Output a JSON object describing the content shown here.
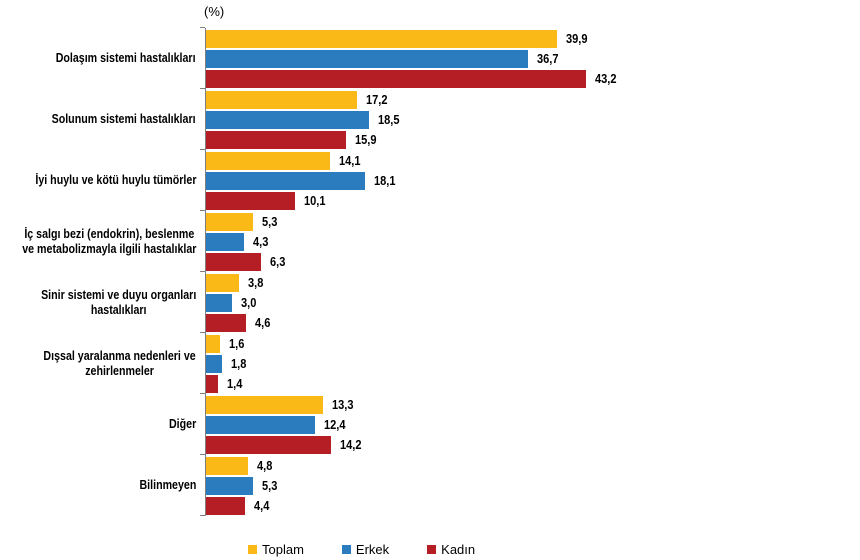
{
  "unit_label": "(%)",
  "colors": {
    "axis": "#7F7F7F",
    "text": "#000000",
    "toplam": "#FBB917",
    "erkek": "#2B7CBE",
    "kadin": "#B41E24"
  },
  "legend": {
    "position": "bottom",
    "items": [
      {
        "label": "Toplam",
        "color": "#FBB917"
      },
      {
        "label": "Erkek",
        "color": "#2B7CBE"
      },
      {
        "label": "Kadın",
        "color": "#B41E24"
      }
    ]
  },
  "chart_data": {
    "type": "bar",
    "orientation": "horizontal",
    "title": "",
    "xlabel": "(%)",
    "ylabel": "",
    "xlim": [
      0,
      70
    ],
    "grid": false,
    "legend_position": "bottom",
    "decimal_separator": ",",
    "categories": [
      "Dolaşım sistemi hastalıkları",
      "Solunum sistemi hastalıkları",
      "İyi huylu ve kötü huylu tümörler",
      "İç salgı bezi (endokrin), beslenme\nve metabolizmayla ilgili hastalıklar",
      "Sinir sistemi ve duyu organları\nhastalıkları",
      "Dışsal yaralanma nedenleri ve\nzehirlenmeler",
      "Diğer",
      "Bilinmeyen"
    ],
    "series": [
      {
        "name": "Toplam",
        "color": "#FBB917",
        "values": [
          39.9,
          17.2,
          14.1,
          5.3,
          3.8,
          1.6,
          13.3,
          4.8
        ],
        "labels": [
          "39,9",
          "17,2",
          "14,1",
          "5,3",
          "3,8",
          "1,6",
          "13,3",
          "4,8"
        ]
      },
      {
        "name": "Erkek",
        "color": "#2B7CBE",
        "values": [
          36.7,
          18.5,
          18.1,
          4.3,
          3.0,
          1.8,
          12.4,
          5.3
        ],
        "labels": [
          "36,7",
          "18,5",
          "18,1",
          "4,3",
          "3,0",
          "1,8",
          "12,4",
          "5,3"
        ]
      },
      {
        "name": "Kadın",
        "color": "#B41E24",
        "values": [
          43.2,
          15.9,
          10.1,
          6.3,
          4.6,
          1.4,
          14.2,
          4.4
        ],
        "labels": [
          "43,2",
          "15,9",
          "10,1",
          "6,3",
          "4,6",
          "1,4",
          "14,2",
          "4,4"
        ]
      }
    ]
  }
}
